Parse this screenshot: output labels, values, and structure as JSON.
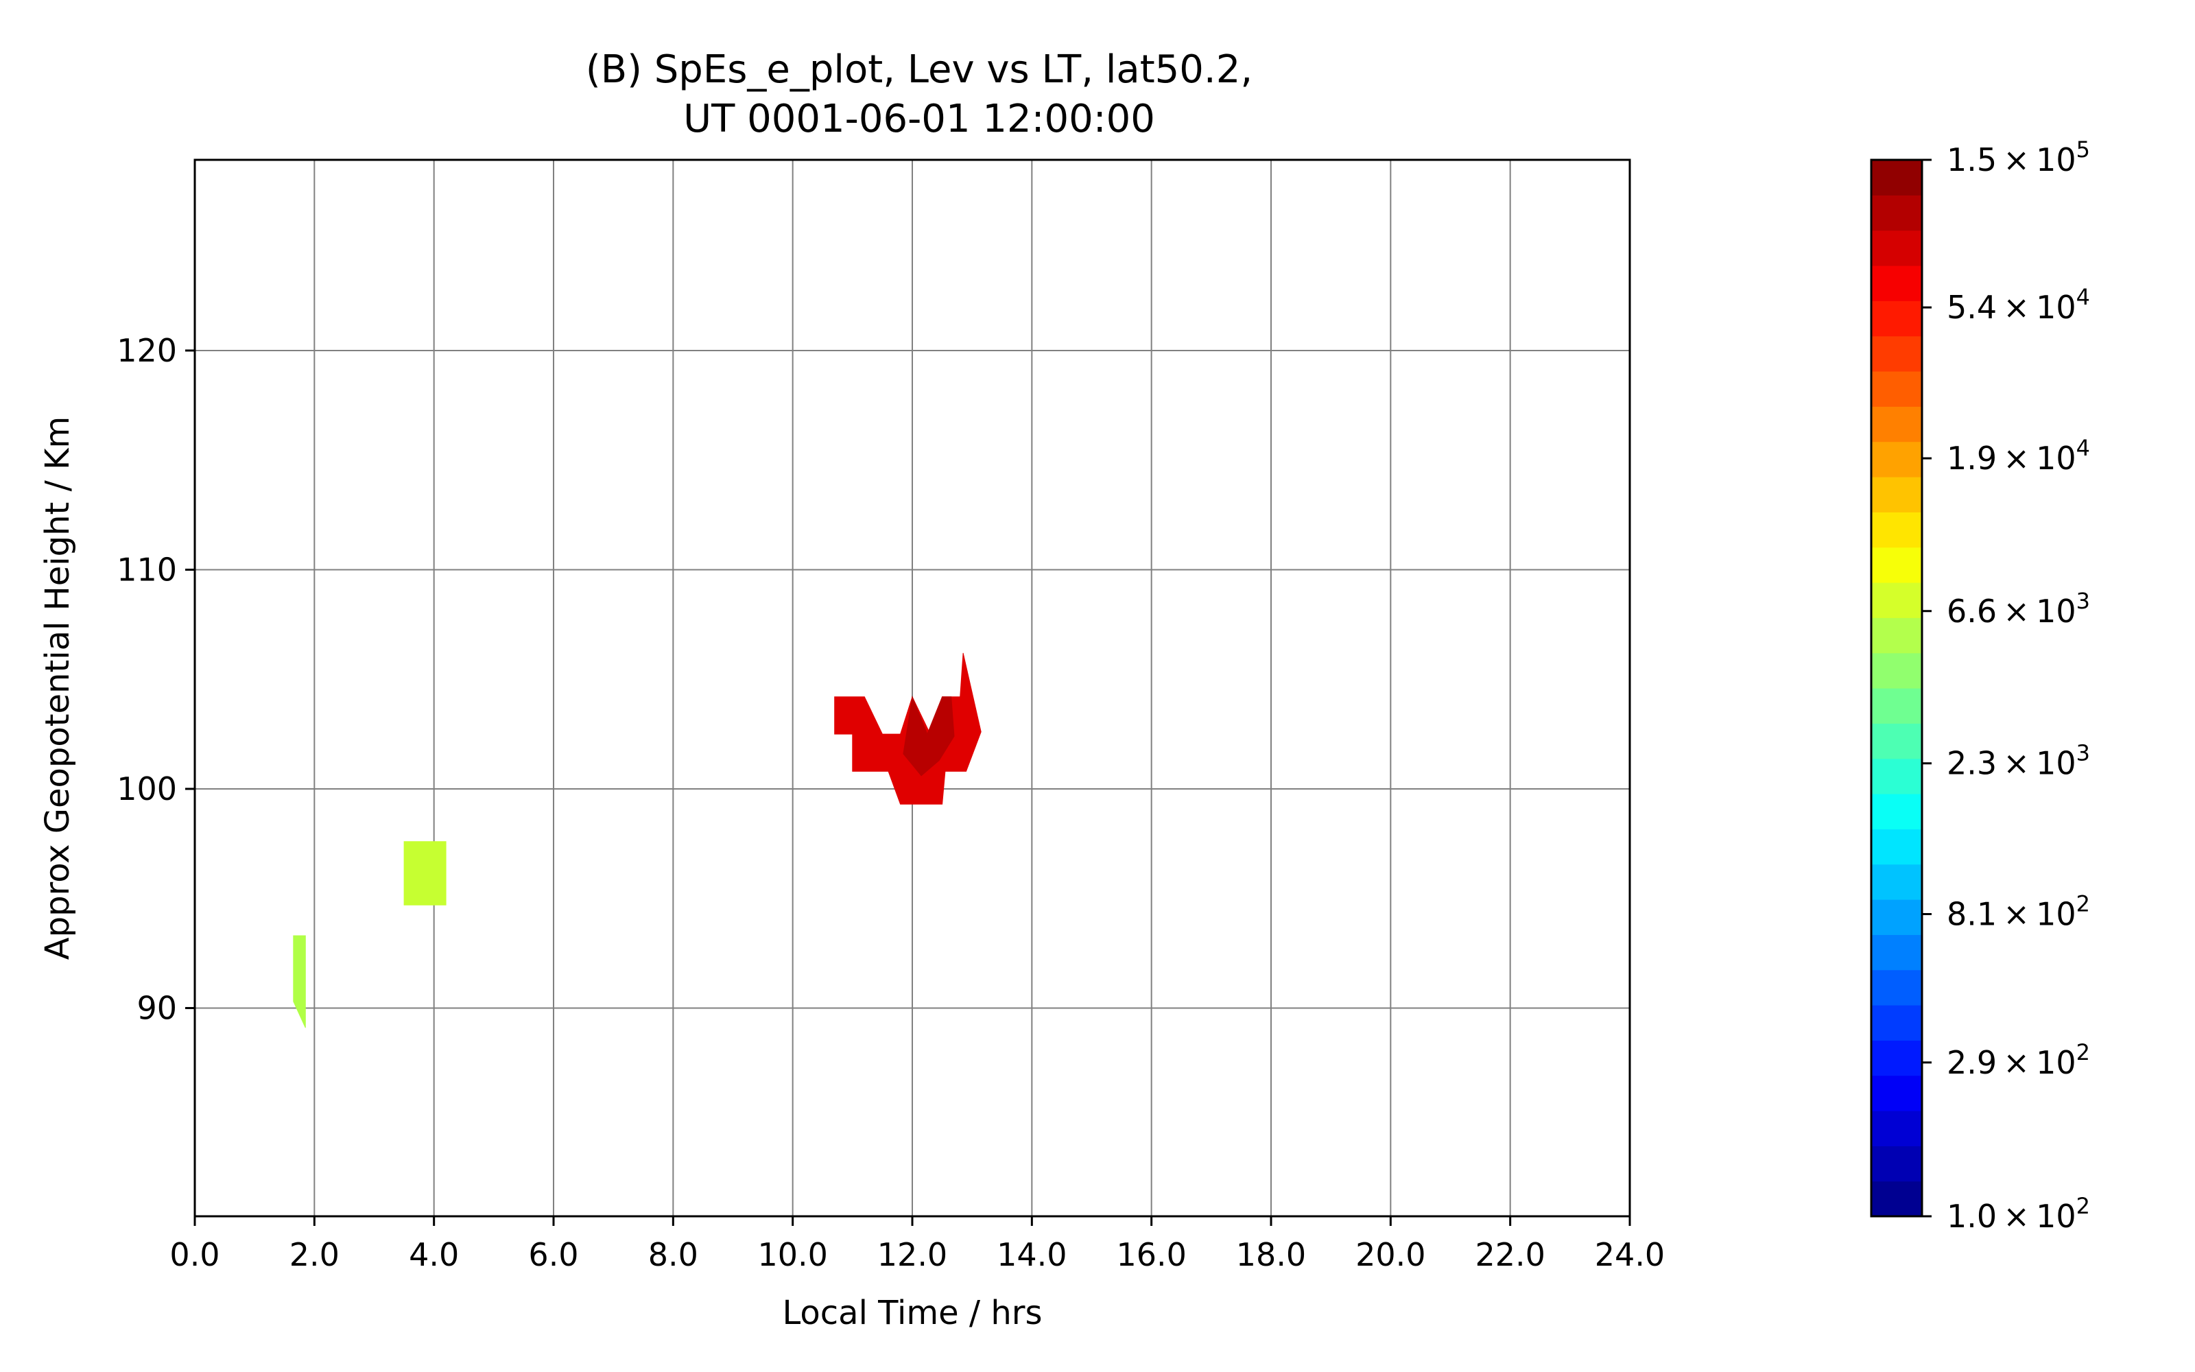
{
  "chart_data": {
    "type": "contour",
    "title_lines": [
      "(B) SpEs_e_plot, Lev vs LT, lat50.2,",
      "UT 0001-06-01 12:00:00"
    ],
    "xlabel": "Local Time / hrs",
    "ylabel": "Approx Geopotential Height / Km",
    "xlim": [
      0,
      24
    ],
    "ylim": [
      80.5,
      128.7
    ],
    "x_ticks": [
      "0.0",
      "2.0",
      "4.0",
      "6.0",
      "8.0",
      "10.0",
      "12.0",
      "14.0",
      "16.0",
      "18.0",
      "20.0",
      "22.0",
      "24.0"
    ],
    "x_tick_values": [
      0,
      2,
      4,
      6,
      8,
      10,
      12,
      14,
      16,
      18,
      20,
      22,
      24
    ],
    "y_ticks": [
      "90",
      "100",
      "110",
      "120"
    ],
    "y_tick_values": [
      90,
      100,
      110,
      120
    ],
    "grid": true,
    "colormap": "jet",
    "colorbar": {
      "scale": "log",
      "levels": 30,
      "range": [
        100,
        150000
      ],
      "tick_values": [
        100,
        290,
        810,
        2300,
        6600,
        19000,
        54000,
        150000
      ],
      "tick_mantissas": [
        "1.0",
        "2.9",
        "8.1",
        "2.3",
        "6.6",
        "1.9",
        "5.4",
        "1.5"
      ],
      "tick_exponents": [
        "2",
        "2",
        "2",
        "3",
        "3",
        "4",
        "4",
        "5"
      ],
      "tick_times": "×",
      "tick_base": "10"
    },
    "regions": [
      {
        "name": "region-1",
        "color": "#b0ff46",
        "polygon": [
          [
            1.65,
            93.3
          ],
          [
            1.85,
            93.3
          ],
          [
            1.85,
            89.1
          ],
          [
            1.65,
            90.3
          ]
        ]
      },
      {
        "name": "region-2",
        "color": "#c6ff31",
        "polygon": [
          [
            3.5,
            97.6
          ],
          [
            4.2,
            97.6
          ],
          [
            4.2,
            94.7
          ],
          [
            3.5,
            94.7
          ]
        ]
      },
      {
        "name": "region-3",
        "color": "#e00000",
        "polygon": [
          [
            10.7,
            104.2
          ],
          [
            11.2,
            104.2
          ],
          [
            11.5,
            102.5
          ],
          [
            11.8,
            102.5
          ],
          [
            12.0,
            104.2
          ],
          [
            12.3,
            102.5
          ],
          [
            12.5,
            104.2
          ],
          [
            12.8,
            104.2
          ],
          [
            12.85,
            106.2
          ],
          [
            13.15,
            102.6
          ],
          [
            12.9,
            100.8
          ],
          [
            12.55,
            100.8
          ],
          [
            12.5,
            99.3
          ],
          [
            11.8,
            99.3
          ],
          [
            11.6,
            100.8
          ],
          [
            11.0,
            100.8
          ],
          [
            11.0,
            102.5
          ],
          [
            10.7,
            102.5
          ]
        ]
      },
      {
        "name": "region-4",
        "color": "#b80000",
        "polygon": [
          [
            12.0,
            104.2
          ],
          [
            12.25,
            102.5
          ],
          [
            12.5,
            104.2
          ],
          [
            12.65,
            104.2
          ],
          [
            12.7,
            102.4
          ],
          [
            12.45,
            101.3
          ],
          [
            12.15,
            100.6
          ],
          [
            11.85,
            101.6
          ]
        ]
      }
    ]
  }
}
